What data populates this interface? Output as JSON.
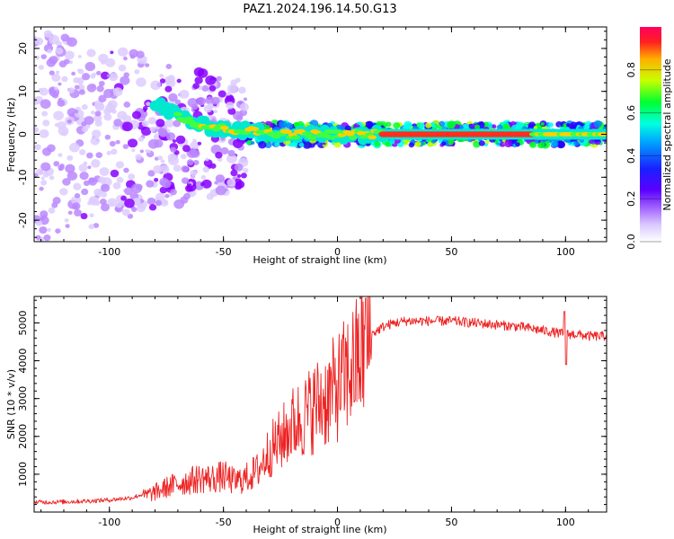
{
  "figure_title": "PAZ1.2024.196.14.50.G13",
  "colors": {
    "snr_line": "#ee2222",
    "axis": "#000000",
    "spectrum_ridge": "#ff2e1f",
    "colormap": [
      "#ffffff",
      "#ddccff",
      "#bb88ff",
      "#8800ff",
      "#2200ff",
      "#0088ff",
      "#00ffee",
      "#00ff22",
      "#ccff00",
      "#ffaa00",
      "#ff0044"
    ]
  },
  "chart_data": [
    {
      "type": "heatmap",
      "title": "",
      "xlabel": "Height of straight line (km)",
      "ylabel": "Frequency (Hz)",
      "xlim": [
        -133,
        118
      ],
      "ylim": [
        -25,
        25
      ],
      "xticks": [
        -100,
        -50,
        0,
        50,
        100
      ],
      "yticks": [
        -20,
        -10,
        0,
        10,
        20
      ],
      "grid": false,
      "colorbar": {
        "label": "Normalized spectral amplitude",
        "range": [
          0.0,
          1.0
        ],
        "ticks": [
          "0.0",
          "0.2",
          "0.4",
          "0.6",
          "0.8"
        ]
      },
      "ridge": {
        "frequency": 0,
        "description_points": [
          {
            "x": -80,
            "y": 7
          },
          {
            "x": -60,
            "y": 2
          },
          {
            "x": -45,
            "y": 1
          },
          {
            "x": -20,
            "y": 0
          },
          {
            "x": 20,
            "y": 0
          },
          {
            "x": 80,
            "y": 0
          },
          {
            "x": 118,
            "y": 0
          }
        ]
      }
    },
    {
      "type": "line",
      "title": "",
      "xlabel": "Height of straight line (km)",
      "ylabel": "SNR (10 * v/v)",
      "xlim": [
        -133,
        118
      ],
      "ylim": [
        0,
        5700
      ],
      "xticks": [
        -100,
        -50,
        0,
        50,
        100
      ],
      "yticks": [
        1000,
        2000,
        3000,
        4000,
        5000
      ],
      "grid": false,
      "series": [
        {
          "x": [
            -133,
            -120,
            -110,
            -100,
            -90,
            -85,
            -80,
            -75,
            -70,
            -65,
            -60,
            -55,
            -50,
            -45,
            -40,
            -35,
            -30,
            -25,
            -20,
            -15,
            -10,
            -5,
            0,
            5,
            10,
            13,
            15,
            20,
            25,
            30,
            40,
            50,
            60,
            70,
            80,
            90,
            95,
            100,
            105,
            110,
            118
          ],
          "values": [
            200,
            210,
            230,
            260,
            320,
            420,
            520,
            650,
            750,
            820,
            900,
            880,
            950,
            800,
            900,
            1100,
            1600,
            1900,
            2300,
            2500,
            2800,
            3000,
            3300,
            3700,
            4100,
            4400,
            4700,
            4900,
            5000,
            5050,
            5050,
            5050,
            5000,
            4950,
            4900,
            4800,
            4750,
            4700,
            4700,
            4650,
            4650
          ]
        }
      ]
    }
  ]
}
